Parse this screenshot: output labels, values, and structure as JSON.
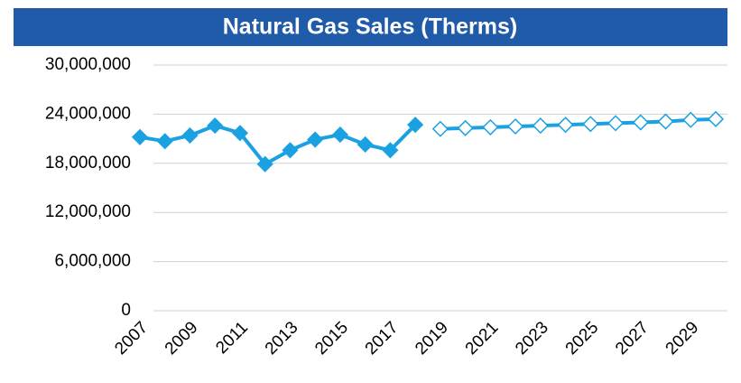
{
  "chart_data": {
    "type": "line",
    "title": "Natural Gas Sales (Therms)",
    "categories": [
      "2007",
      null,
      "2009",
      null,
      "2011",
      null,
      "2013",
      null,
      "2015",
      null,
      "2017",
      null,
      "2019",
      null,
      "2021",
      null,
      "2023",
      null,
      "2025",
      null,
      "2027",
      null,
      "2029",
      null
    ],
    "series": [
      {
        "color": "#19a1e1",
        "marker_filled": true,
        "values": [
          21200000,
          20700000,
          21400000,
          22600000,
          21700000,
          17900000,
          19600000,
          20900000,
          21500000,
          20300000,
          19600000,
          22700000,
          null,
          null,
          null,
          null,
          null,
          null,
          null,
          null,
          null,
          null,
          null,
          null
        ]
      },
      {
        "color": "#19a1e1",
        "marker_filled": false,
        "values": [
          null,
          null,
          null,
          null,
          null,
          null,
          null,
          null,
          null,
          null,
          null,
          null,
          22200000,
          22300000,
          22400000,
          22500000,
          22600000,
          22700000,
          22800000,
          22900000,
          23000000,
          23100000,
          23300000,
          23400000
        ]
      }
    ],
    "ylim": [
      0,
      30000000
    ],
    "yticks": [
      0,
      {
        "value": 6000000,
        "label": "6,000,000"
      },
      {
        "value": 12000000,
        "label": "12,000,000"
      },
      {
        "value": 18000000,
        "label": "18,000,000"
      },
      {
        "value": 24000000,
        "label": "24,000,000"
      },
      {
        "value": 30000000,
        "label": "30,000,000"
      }
    ],
    "grid": true
  }
}
